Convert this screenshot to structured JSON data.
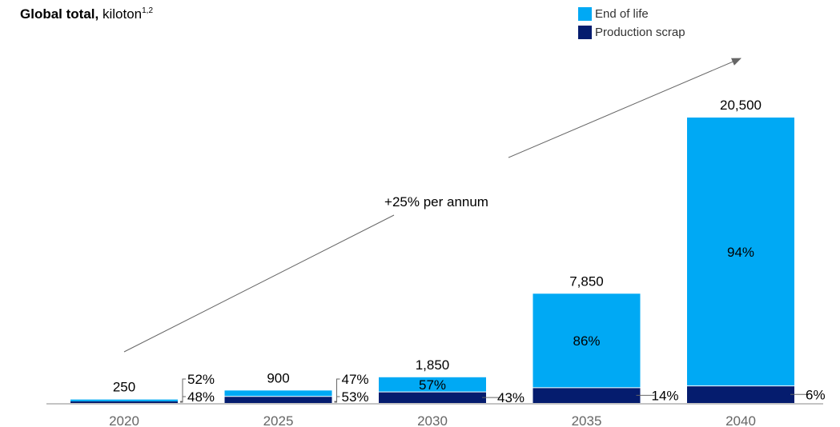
{
  "title": {
    "bold": "Global total,",
    "rest": "kiloton",
    "sup": "1,2"
  },
  "legend": [
    {
      "label": "End of life",
      "color": "#00a9f4"
    },
    {
      "label": "Production scrap",
      "color": "#051c6e"
    }
  ],
  "annotation": "+25% per annum",
  "chart_data": {
    "type": "bar",
    "stacked": true,
    "categories": [
      "2020",
      "2025",
      "2030",
      "2035",
      "2040"
    ],
    "totals": [
      "250",
      "900",
      "1,850",
      "7,850",
      "20,500"
    ],
    "total_values": [
      250,
      900,
      1850,
      7850,
      20500
    ],
    "series": [
      {
        "name": "Production scrap",
        "color": "#051c6e",
        "percent": [
          48,
          53,
          43,
          14,
          6
        ],
        "percent_labels": [
          "48%",
          "53%",
          "43%",
          "14%",
          "6%"
        ]
      },
      {
        "name": "End of life",
        "color": "#00a9f4",
        "percent": [
          52,
          47,
          57,
          86,
          94
        ],
        "percent_labels": [
          "52%",
          "47%",
          "57%",
          "86%",
          "94%"
        ]
      }
    ],
    "title": "Global total, kiloton",
    "ylim": [
      0,
      20500
    ],
    "grid": false,
    "legend_position": "top-right"
  }
}
